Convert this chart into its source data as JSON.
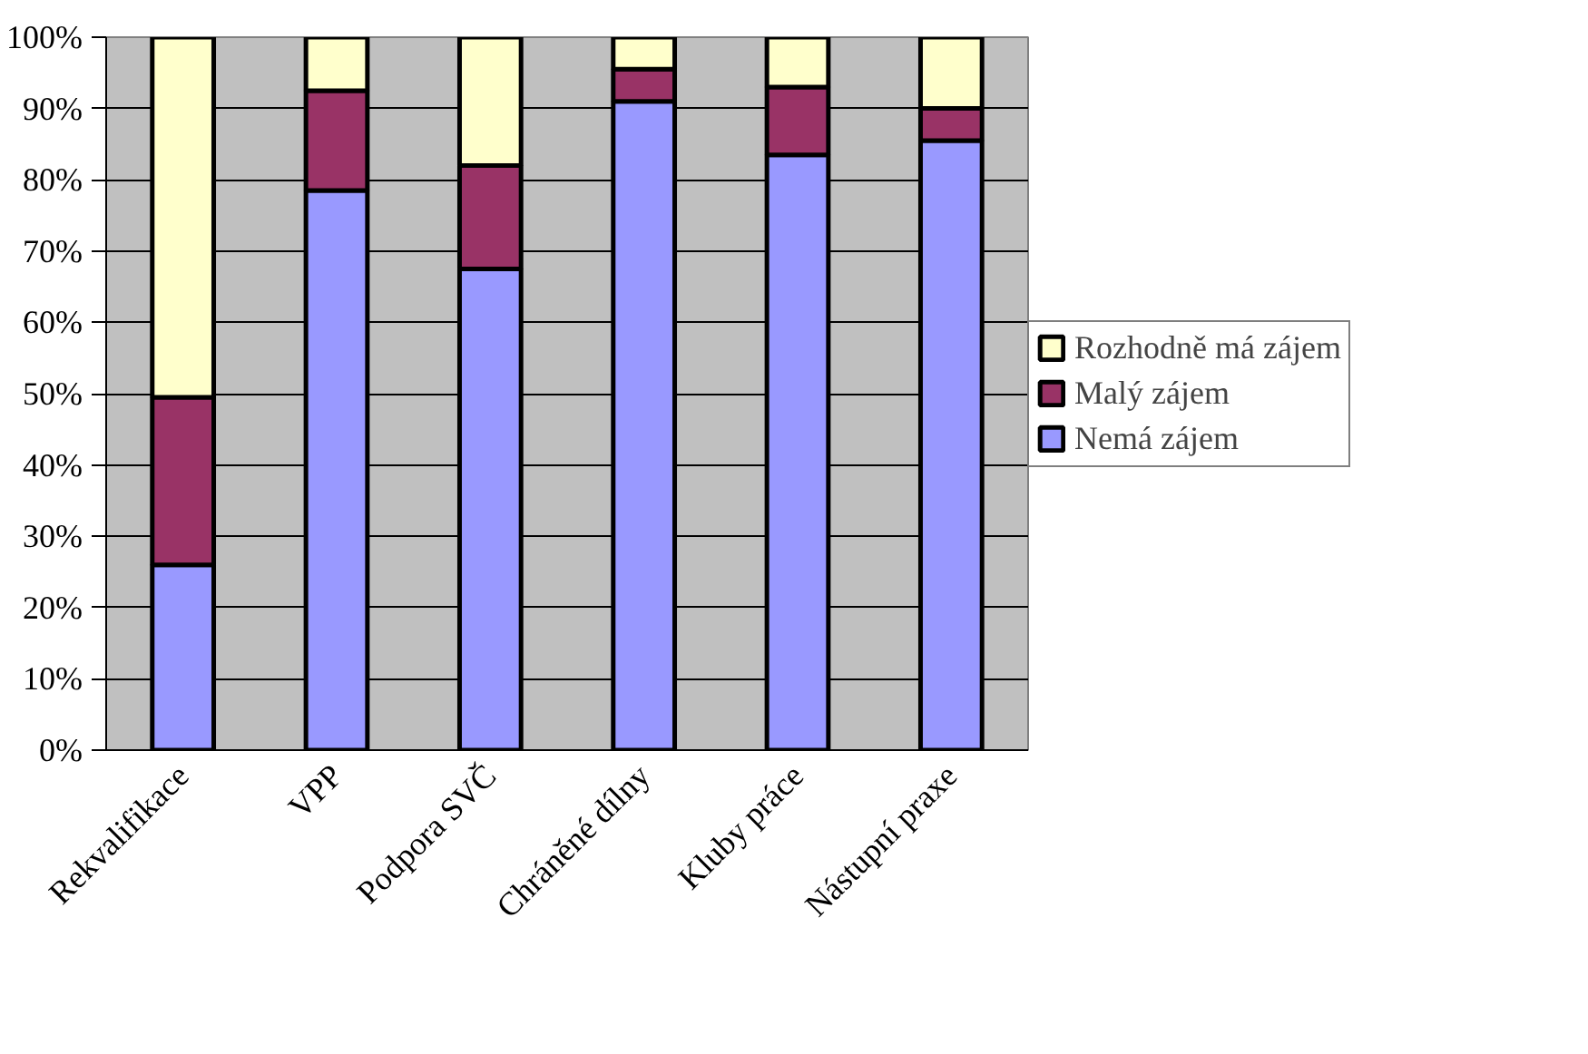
{
  "chart_data": {
    "type": "bar",
    "stacked": true,
    "categories": [
      "Rekvalifikace",
      "VPP",
      "Podpora SVČ",
      "Chráněné dílny",
      "Kluby práce",
      "Nástupní praxe"
    ],
    "series": [
      {
        "name": "Nemá zájem",
        "color": "#9999ff",
        "values": [
          26,
          78.5,
          67.5,
          91,
          83.5,
          85.5
        ]
      },
      {
        "name": "Malý zájem",
        "color": "#993366",
        "values": [
          23.5,
          14,
          14.5,
          4.5,
          9.5,
          4.5
        ]
      },
      {
        "name": "Rozhodně má zájem",
        "color": "#ffffcc",
        "values": [
          50.5,
          7.5,
          18,
          4.5,
          7,
          10
        ]
      }
    ],
    "ylim": [
      0,
      100
    ],
    "yticks": [
      {
        "value": 0,
        "label": "0%"
      },
      {
        "value": 10,
        "label": "10%"
      },
      {
        "value": 20,
        "label": "20%"
      },
      {
        "value": 30,
        "label": "30%"
      },
      {
        "value": 40,
        "label": "40%"
      },
      {
        "value": 50,
        "label": "50%"
      },
      {
        "value": 60,
        "label": "60%"
      },
      {
        "value": 70,
        "label": "70%"
      },
      {
        "value": 80,
        "label": "80%"
      },
      {
        "value": 90,
        "label": "90%"
      },
      {
        "value": 100,
        "label": "100%"
      }
    ],
    "grid": "y",
    "legend": "right"
  }
}
